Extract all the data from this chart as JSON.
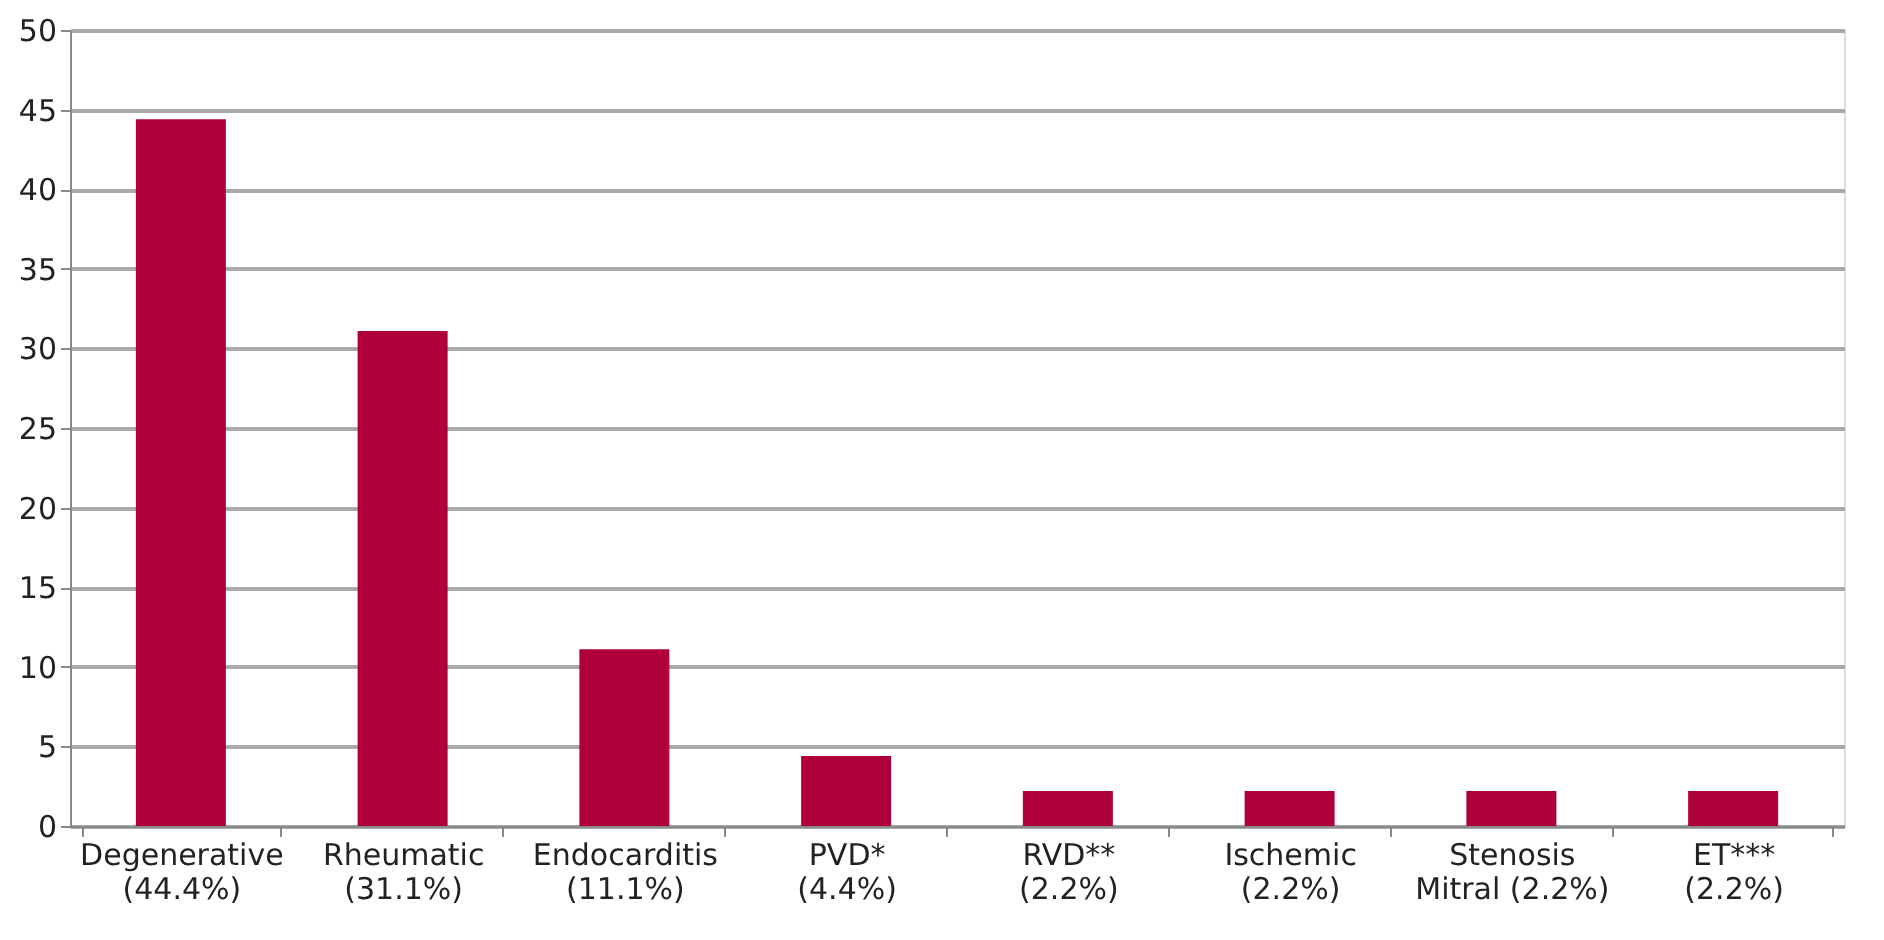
{
  "chart_data": {
    "type": "bar",
    "categories": [
      "Degenerative\n(44.4%)",
      "Rheumatic\n(31.1%)",
      "Endocarditis\n(11.1%)",
      "PVD*\n(4.4%)",
      "RVD**\n(2.2%)",
      "Ischemic\n(2.2%)",
      "Stenosis\nMitral (2.2%)",
      "ET***\n(2.2%)"
    ],
    "values": [
      44.4,
      31.1,
      11.1,
      4.4,
      2.2,
      2.2,
      2.2,
      2.2
    ],
    "color": "#b0003a",
    "ylim": [
      0,
      50
    ],
    "yticks": [
      0,
      5,
      10,
      15,
      20,
      25,
      30,
      35,
      40,
      45,
      50
    ],
    "grid": "y"
  }
}
